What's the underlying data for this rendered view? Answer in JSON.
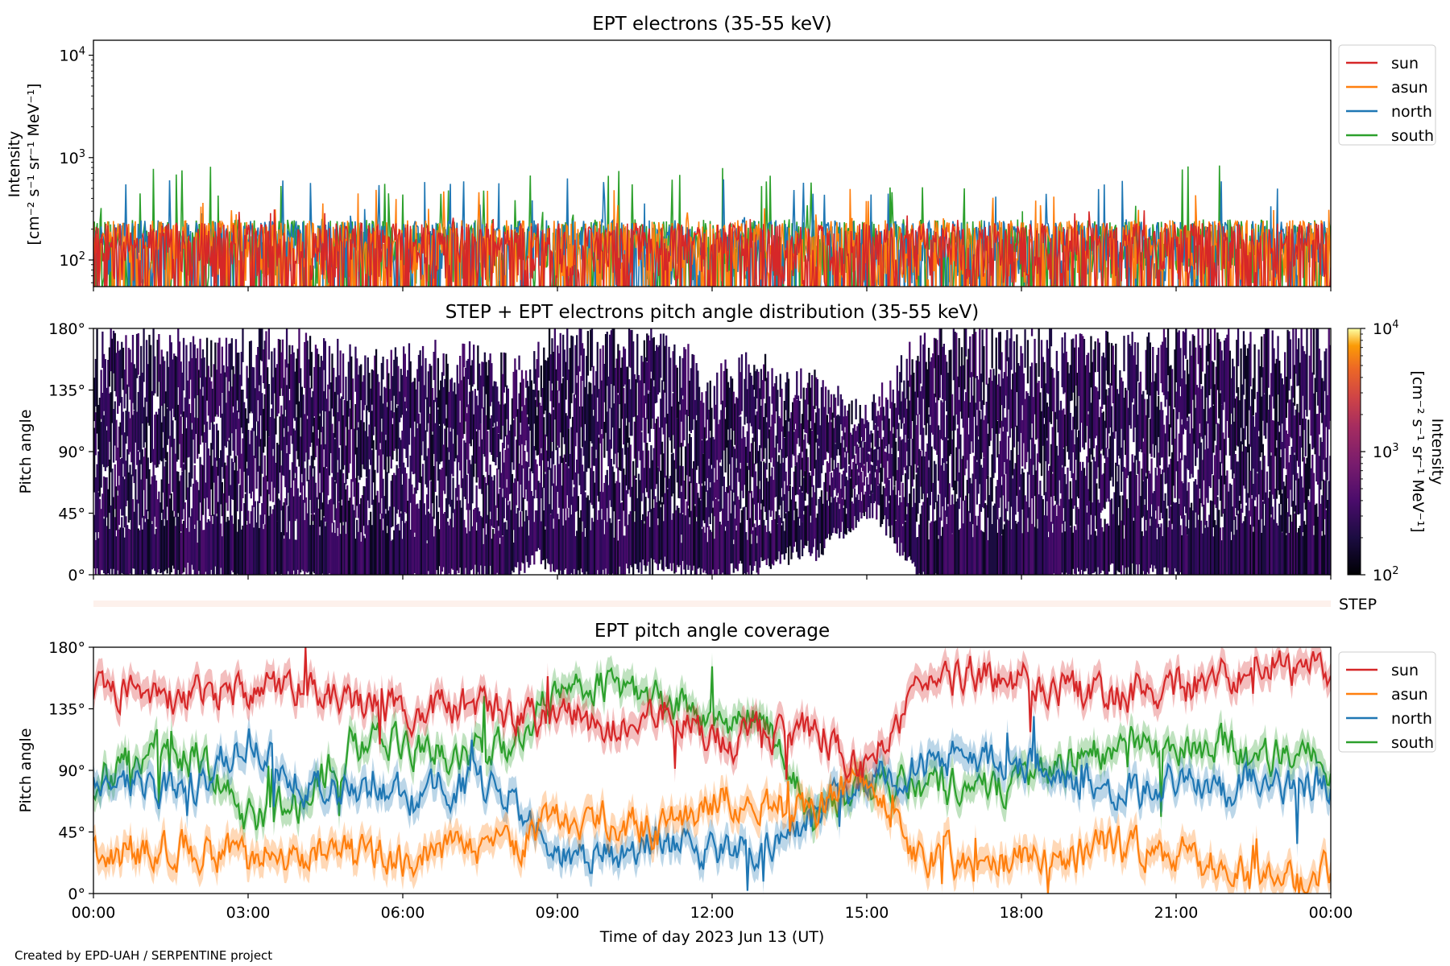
{
  "footer": "Created by EPD-UAH / SERPENTINE project",
  "colors": {
    "sun": "#d62728",
    "asun": "#ff7f0e",
    "north": "#1f77b4",
    "south": "#2ca02c",
    "step_bar": "#fdf1ec"
  },
  "chart_data": [
    {
      "type": "line",
      "title": "EPT electrons (35-55 keV)",
      "ylabel_line1": "Intensity",
      "ylabel_line2": "[cm⁻² s⁻¹ sr⁻¹ MeV⁻¹]",
      "yscale": "log",
      "ylim": [
        55,
        14000
      ],
      "yticks": [
        {
          "value": 100,
          "base": "10",
          "exp": "2"
        },
        {
          "value": 1000,
          "base": "10",
          "exp": "3"
        },
        {
          "value": 10000,
          "base": "10",
          "exp": "4"
        }
      ],
      "legend_position": "outside-right",
      "series": [
        {
          "name": "sun",
          "baseline": 120,
          "spread": 110,
          "peak": 320
        },
        {
          "name": "asun",
          "baseline": 125,
          "spread": 120,
          "peak": 500
        },
        {
          "name": "north",
          "baseline": 130,
          "spread": 115,
          "peak": 650
        },
        {
          "name": "south",
          "baseline": 130,
          "spread": 120,
          "peak": 850
        }
      ],
      "x_hours": [
        0,
        24
      ],
      "notes": "Dense noisy intensity time series, 0–24 h"
    },
    {
      "type": "heatmap",
      "title": "STEP + EPT electrons pitch angle distribution (35-55 keV)",
      "ylabel": "Pitch angle",
      "ylim": [
        0,
        180
      ],
      "yticks": [
        "0°",
        "45°",
        "90°",
        "135°",
        "180°"
      ],
      "colorbar": {
        "label_line1": "Intensity",
        "label_line2": "[cm⁻² s⁻¹ sr⁻¹ MeV⁻¹]",
        "scale": "log",
        "range": [
          100,
          10000
        ],
        "ticks": [
          {
            "value": 100,
            "base": "10",
            "exp": "2"
          },
          {
            "value": 1000,
            "base": "10",
            "exp": "3"
          },
          {
            "value": 10000,
            "base": "10",
            "exp": "4"
          }
        ],
        "colormap": "inferno"
      },
      "step_label": "STEP"
    },
    {
      "type": "line",
      "title": "EPT pitch angle coverage",
      "ylabel": "Pitch angle",
      "xlabel": "Time of day 2023 Jun 13 (UT)",
      "ylim": [
        0,
        180
      ],
      "yticks": [
        "0°",
        "45°",
        "90°",
        "135°",
        "180°"
      ],
      "xticks": [
        "00:00",
        "03:00",
        "06:00",
        "09:00",
        "12:00",
        "15:00",
        "18:00",
        "21:00",
        "00:00"
      ],
      "x_hours": [
        0,
        24
      ],
      "legend_position": "outside-right",
      "series": [
        {
          "name": "sun",
          "x": [
            0,
            1,
            2,
            3,
            4,
            5,
            6,
            7,
            8,
            9,
            10,
            11,
            12,
            13,
            14,
            15,
            16,
            17,
            18,
            19,
            20,
            21,
            22,
            22.5,
            23,
            24
          ],
          "y": [
            150,
            150,
            145,
            150,
            150,
            140,
            135,
            140,
            130,
            125,
            125,
            135,
            110,
            115,
            120,
            90,
            150,
            160,
            155,
            150,
            145,
            150,
            160,
            170,
            165,
            165
          ]
        },
        {
          "name": "asun",
          "x": [
            0,
            1,
            2,
            3,
            4,
            5,
            6,
            7,
            8,
            9,
            10,
            11,
            12,
            13,
            14,
            15,
            16,
            17,
            18,
            19,
            20,
            21,
            22,
            22.5,
            23,
            24
          ],
          "y": [
            30,
            30,
            35,
            25,
            30,
            25,
            25,
            35,
            30,
            55,
            55,
            45,
            70,
            65,
            60,
            90,
            30,
            20,
            25,
            30,
            35,
            30,
            20,
            10,
            10,
            15
          ]
        },
        {
          "name": "north",
          "x": [
            0,
            1,
            2,
            3,
            4,
            5,
            6,
            7,
            8,
            9,
            10,
            11,
            12,
            13,
            14,
            15,
            16,
            17,
            18,
            19,
            20,
            21,
            22,
            22.5,
            23,
            24
          ],
          "y": [
            90,
            75,
            80,
            115,
            80,
            75,
            70,
            80,
            75,
            30,
            30,
            40,
            30,
            40,
            55,
            85,
            95,
            100,
            95,
            85,
            75,
            80,
            75,
            90,
            80,
            80
          ]
        },
        {
          "name": "south",
          "x": [
            0,
            1,
            2,
            3,
            4,
            5,
            6,
            7,
            8,
            9,
            10,
            11,
            12,
            13,
            14,
            15,
            16,
            17,
            18,
            19,
            20,
            21,
            22,
            22.5,
            23,
            24
          ],
          "y": [
            80,
            105,
            100,
            55,
            65,
            110,
            110,
            100,
            105,
            155,
            155,
            145,
            125,
            130,
            50,
            80,
            80,
            75,
            80,
            100,
            110,
            100,
            110,
            90,
            100,
            95
          ]
        }
      ]
    }
  ]
}
